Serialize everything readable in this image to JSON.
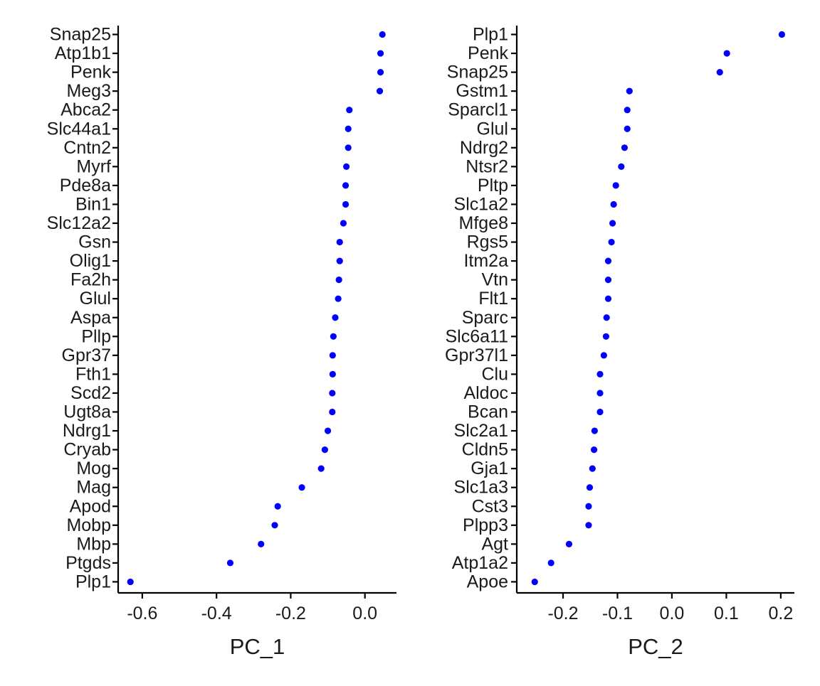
{
  "chart_data": [
    {
      "type": "scatter",
      "xlabel": "PC_1",
      "ylabel": "",
      "xlim": [
        -0.665,
        0.085
      ],
      "xticks": [
        -0.6,
        -0.4,
        -0.2,
        0.0
      ],
      "xtick_labels": [
        "-0.6",
        "-0.4",
        "-0.2",
        "0.0"
      ],
      "point_color": "#0000ff",
      "grid": false,
      "genes": [
        "Snap25",
        "Atp1b1",
        "Penk",
        "Meg3",
        "Abca2",
        "Slc44a1",
        "Cntn2",
        "Myrf",
        "Pde8a",
        "Bin1",
        "Slc12a2",
        "Gsn",
        "Olig1",
        "Fa2h",
        "Glul",
        "Aspa",
        "Pllp",
        "Gpr37",
        "Fth1",
        "Scd2",
        "Ugt8a",
        "Ndrg1",
        "Cryab",
        "Mog",
        "Mag",
        "Apod",
        "Mobp",
        "Mbp",
        "Ptgds",
        "Plp1"
      ],
      "values": [
        0.047,
        0.042,
        0.042,
        0.04,
        -0.042,
        -0.045,
        -0.045,
        -0.05,
        -0.052,
        -0.052,
        -0.058,
        -0.068,
        -0.068,
        -0.07,
        -0.072,
        -0.08,
        -0.085,
        -0.087,
        -0.087,
        -0.088,
        -0.088,
        -0.1,
        -0.108,
        -0.118,
        -0.17,
        -0.235,
        -0.243,
        -0.28,
        -0.363,
        -0.632
      ]
    },
    {
      "type": "scatter",
      "xlabel": "PC_2",
      "ylabel": "",
      "xlim": [
        -0.285,
        0.225
      ],
      "xticks": [
        -0.2,
        -0.1,
        0.0,
        0.1,
        0.2
      ],
      "xtick_labels": [
        "-0.2",
        "-0.1",
        "0.0",
        "0.1",
        "0.2"
      ],
      "point_color": "#0000ff",
      "grid": false,
      "genes": [
        "Plp1",
        "Penk",
        "Snap25",
        "Gstm1",
        "Sparcl1",
        "Glul",
        "Ndrg2",
        "Ntsr2",
        "Pltp",
        "Slc1a2",
        "Mfge8",
        "Rgs5",
        "Itm2a",
        "Vtn",
        "Flt1",
        "Sparc",
        "Slc6a11",
        "Gpr37l1",
        "Clu",
        "Aldoc",
        "Bcan",
        "Slc2a1",
        "Cldn5",
        "Gja1",
        "Slc1a3",
        "Cst3",
        "Plpp3",
        "Agt",
        "Atp1a2",
        "Apoe"
      ],
      "values": [
        0.202,
        0.101,
        0.088,
        -0.078,
        -0.082,
        -0.082,
        -0.087,
        -0.093,
        -0.103,
        -0.107,
        -0.109,
        -0.111,
        -0.117,
        -0.117,
        -0.117,
        -0.12,
        -0.121,
        -0.125,
        -0.132,
        -0.132,
        -0.132,
        -0.142,
        -0.143,
        -0.146,
        -0.151,
        -0.153,
        -0.153,
        -0.189,
        -0.222,
        -0.252
      ]
    }
  ]
}
